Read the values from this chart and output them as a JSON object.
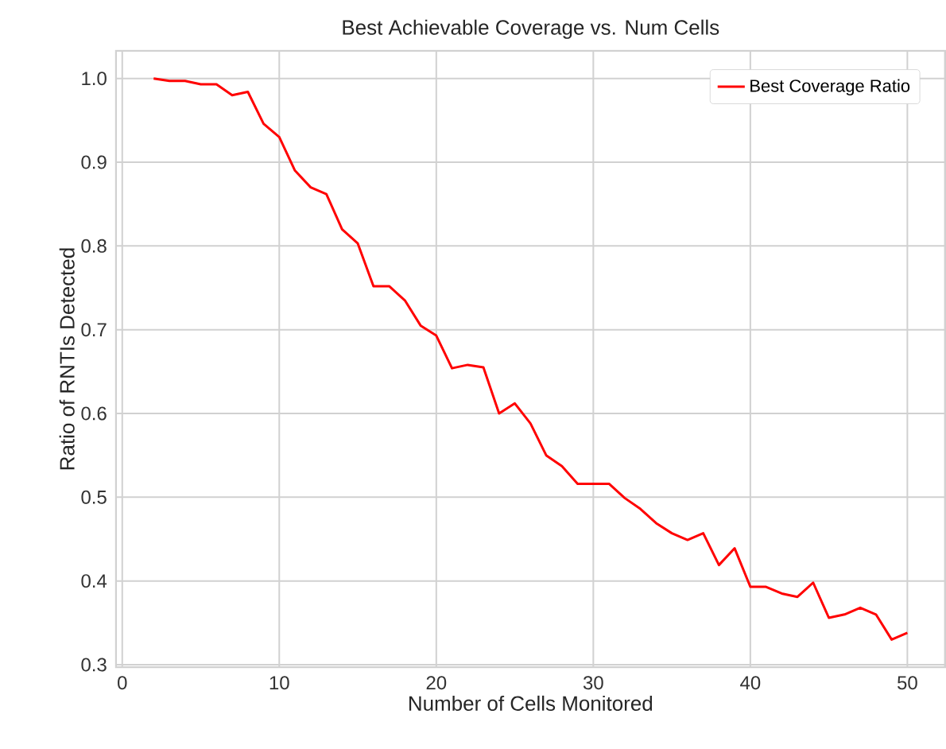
{
  "chart_data": {
    "type": "line",
    "title": "Best Achievable Coverage vs. Num Cells",
    "xlabel": "Number of Cells Monitored",
    "ylabel": "Ratio of RNTIs Detected",
    "x": [
      2,
      3,
      4,
      5,
      6,
      7,
      8,
      9,
      10,
      11,
      12,
      13,
      14,
      15,
      16,
      17,
      18,
      19,
      20,
      21,
      22,
      23,
      24,
      25,
      26,
      27,
      28,
      29,
      30,
      31,
      32,
      33,
      34,
      35,
      36,
      37,
      38,
      39,
      40,
      41,
      42,
      43,
      44,
      45,
      46,
      47,
      48,
      49,
      50
    ],
    "series": [
      {
        "name": "Best Coverage Ratio",
        "color": "#ff0000",
        "values": [
          1.0,
          0.997,
          0.997,
          0.993,
          0.993,
          0.98,
          0.984,
          0.946,
          0.93,
          0.89,
          0.87,
          0.862,
          0.82,
          0.803,
          0.752,
          0.752,
          0.735,
          0.705,
          0.693,
          0.654,
          0.658,
          0.655,
          0.6,
          0.612,
          0.588,
          0.55,
          0.537,
          0.516,
          0.516,
          0.516,
          0.499,
          0.486,
          0.469,
          0.457,
          0.449,
          0.457,
          0.419,
          0.439,
          0.393,
          0.393,
          0.385,
          0.381,
          0.398,
          0.356,
          0.36,
          0.368,
          0.36,
          0.33,
          0.338
        ]
      }
    ],
    "xlim": [
      -0.4,
      52.4
    ],
    "ylim": [
      0.297,
      1.033
    ],
    "xticks": [
      0,
      10,
      20,
      30,
      40,
      50
    ],
    "yticks": [
      {
        "value": 0.3,
        "label": "0.3"
      },
      {
        "value": 0.4,
        "label": "0.4"
      },
      {
        "value": 0.5,
        "label": "0.5"
      },
      {
        "value": 0.6,
        "label": "0.6"
      },
      {
        "value": 0.7,
        "label": "0.7"
      },
      {
        "value": 0.8,
        "label": "0.8"
      },
      {
        "value": 0.9,
        "label": "0.9"
      },
      {
        "value": 1.0,
        "label": "1.0"
      }
    ],
    "grid": true,
    "legend": "top right",
    "marker": "none",
    "line_style": "solid"
  }
}
